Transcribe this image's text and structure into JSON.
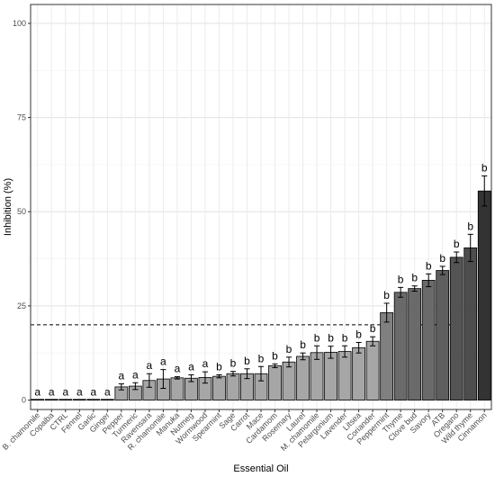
{
  "chart_data": {
    "type": "bar",
    "title": "",
    "xlabel": "Essential Oil",
    "ylabel": "Inhibition (%)",
    "ylim": [
      0,
      100
    ],
    "yticks": [
      0,
      25,
      50,
      75,
      100
    ],
    "reference_line": {
      "y": 20,
      "style": "dashed"
    },
    "grid": true,
    "legend": "none",
    "categories": [
      "B. chamomile",
      "Copaiba",
      "CTRL",
      "Fennel",
      "Garlic",
      "Ginger",
      "Pepper",
      "Turmeric",
      "Ravensara",
      "R. chamomile",
      "Manuka",
      "Nutmeg",
      "Wormwood",
      "Spearmint",
      "Sage",
      "Carrot",
      "Mace",
      "Cardamom",
      "Rosemary",
      "Laurel",
      "M. chamomile",
      "Pelargonium",
      "Lavender",
      "Litsea",
      "Coriander",
      "Peppermint",
      "Thyme",
      "Clove bud",
      "Savory",
      "ATB",
      "Oregano",
      "Wild thyme",
      "Cinnamon"
    ],
    "values": [
      0,
      0,
      0,
      0,
      0,
      0,
      3.5,
      3.7,
      5.2,
      5.6,
      5.9,
      5.8,
      6.0,
      6.3,
      7.0,
      7.0,
      7.0,
      9.1,
      10.1,
      11.6,
      12.6,
      12.7,
      12.9,
      13.9,
      15.6,
      23.2,
      28.6,
      29.6,
      31.8,
      34.4,
      37.9,
      40.4,
      55.5
    ],
    "errors": [
      0,
      0,
      0,
      0,
      0,
      0,
      0.8,
      0.9,
      1.8,
      2.5,
      0.3,
      0.9,
      1.5,
      0.4,
      0.6,
      1.3,
      1.9,
      0.5,
      1.3,
      0.9,
      1.8,
      1.6,
      1.5,
      1.4,
      1.2,
      2.5,
      1.3,
      0.7,
      1.7,
      1.1,
      1.4,
      3.6,
      4.0
    ],
    "significance": [
      "a",
      "a",
      "a",
      "a",
      "a",
      "a",
      "a",
      "a",
      "a",
      "a",
      "a",
      "a",
      "a",
      "b",
      "b",
      "b",
      "b",
      "b",
      "b",
      "b",
      "b",
      "b",
      "b",
      "b",
      "b",
      "b",
      "b",
      "b",
      "b",
      "b",
      "b",
      "b",
      "b"
    ],
    "fill_colors": [
      "#a6a6a6",
      "#a6a6a6",
      "#a6a6a6",
      "#a6a6a6",
      "#a6a6a6",
      "#a6a6a6",
      "#a6a6a6",
      "#a6a6a6",
      "#a6a6a6",
      "#a6a6a6",
      "#a6a6a6",
      "#a6a6a6",
      "#a6a6a6",
      "#a6a6a6",
      "#a6a6a6",
      "#a6a6a6",
      "#a6a6a6",
      "#a6a6a6",
      "#a6a6a6",
      "#a6a6a6",
      "#a6a6a6",
      "#a6a6a6",
      "#a6a6a6",
      "#a6a6a6",
      "#a6a6a6",
      "#808080",
      "#6a6a6a",
      "#6a6a6a",
      "#6a6a6a",
      "#5e5e5e",
      "#545454",
      "#4d4d4d",
      "#333333"
    ]
  }
}
